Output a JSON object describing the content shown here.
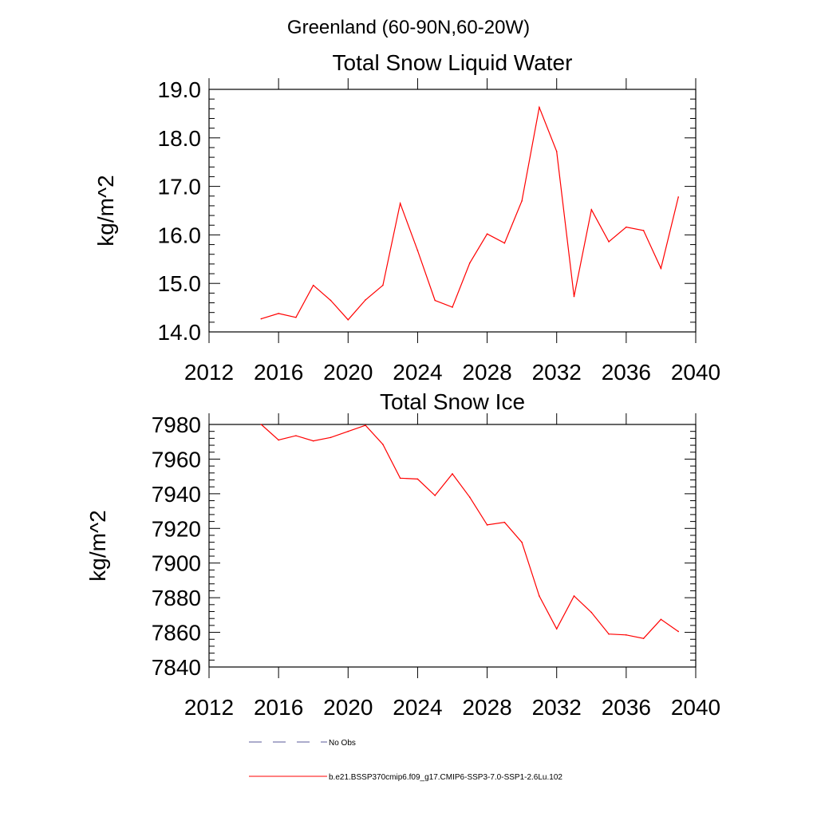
{
  "suptitle": "Greenland (60-90N,60-20W)",
  "chart_data": [
    {
      "type": "line",
      "title": "Total Snow Liquid Water",
      "xlabel": "",
      "ylabel": "kg/m^2",
      "xlim": [
        2012,
        2040
      ],
      "ylim": [
        14.0,
        19.0
      ],
      "xticks": [
        "2012",
        "2016",
        "2020",
        "2024",
        "2028",
        "2032",
        "2036",
        "2040"
      ],
      "yticks": [
        "14.0",
        "15.0",
        "16.0",
        "17.0",
        "18.0",
        "19.0"
      ],
      "grid": false,
      "series": [
        {
          "name": "b.e21.BSSP370cmip6.f09_g17.CMIP6-SSP3-7.0-SSP1-2.6Lu.102",
          "color": "#ff0000",
          "x": [
            2015,
            2016,
            2017,
            2018,
            2019,
            2020,
            2021,
            2022,
            2023,
            2024,
            2025,
            2026,
            2027,
            2028,
            2029,
            2030,
            2031,
            2032,
            2033,
            2034,
            2035,
            2036,
            2037,
            2038,
            2039
          ],
          "y": [
            14.27,
            14.38,
            14.3,
            14.96,
            14.65,
            14.25,
            14.66,
            14.96,
            16.65,
            15.68,
            14.65,
            14.51,
            15.42,
            16.02,
            15.83,
            16.7,
            18.63,
            17.72,
            14.73,
            16.52,
            15.86,
            16.16,
            16.09,
            15.31,
            16.78
          ]
        }
      ]
    },
    {
      "type": "line",
      "title": "Total Snow Ice",
      "xlabel": "",
      "ylabel": "kg/m^2",
      "xlim": [
        2012,
        2040
      ],
      "ylim": [
        7840,
        7980
      ],
      "xticks": [
        "2012",
        "2016",
        "2020",
        "2024",
        "2028",
        "2032",
        "2036",
        "2040"
      ],
      "yticks": [
        "7840",
        "7860",
        "7880",
        "7900",
        "7920",
        "7940",
        "7960",
        "7980"
      ],
      "grid": false,
      "series": [
        {
          "name": "b.e21.BSSP370cmip6.f09_g17.CMIP6-SSP3-7.0-SSP1-2.6Lu.102",
          "color": "#ff0000",
          "x": [
            2015,
            2016,
            2017,
            2018,
            2019,
            2020,
            2021,
            2022,
            2023,
            2024,
            2025,
            2026,
            2027,
            2028,
            2029,
            2030,
            2031,
            2032,
            2033,
            2034,
            2035,
            2036,
            2037,
            2038,
            2039
          ],
          "y": [
            7980,
            7971,
            7973.5,
            7970.5,
            7972.5,
            7976,
            7979.5,
            7968.5,
            7949,
            7948.5,
            7939,
            7951.5,
            7938,
            7922,
            7923.5,
            7912,
            7881,
            7862,
            7881,
            7871.5,
            7859,
            7858.5,
            7856.5,
            7867.5,
            7860.5
          ]
        }
      ]
    }
  ],
  "legend": {
    "placement": "bottom",
    "entries": [
      {
        "label": "No Obs",
        "color": "#5a5a9a",
        "style": "dashed"
      },
      {
        "label": "b.e21.BSSP370cmip6.f09_g17.CMIP6-SSP3-7.0-SSP1-2.6Lu.102",
        "color": "#ff0000",
        "style": "solid"
      }
    ]
  }
}
